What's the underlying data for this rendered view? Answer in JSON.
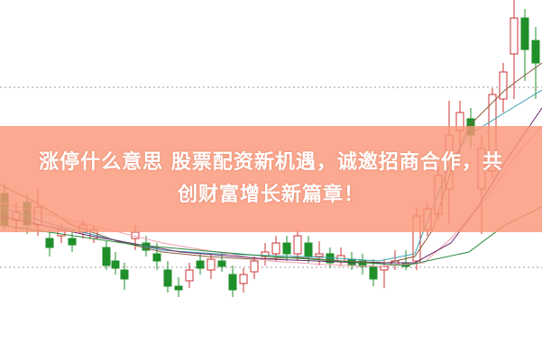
{
  "headline": {
    "line1": "涨停什么意思 股票配资新机遇，诚邀招商合作，共",
    "line2": "创财富增长新篇章！"
  },
  "colors": {
    "up": "#cc3333",
    "down": "#1f8f2a",
    "banner": "#fa9678",
    "grid": "#999999"
  }
}
